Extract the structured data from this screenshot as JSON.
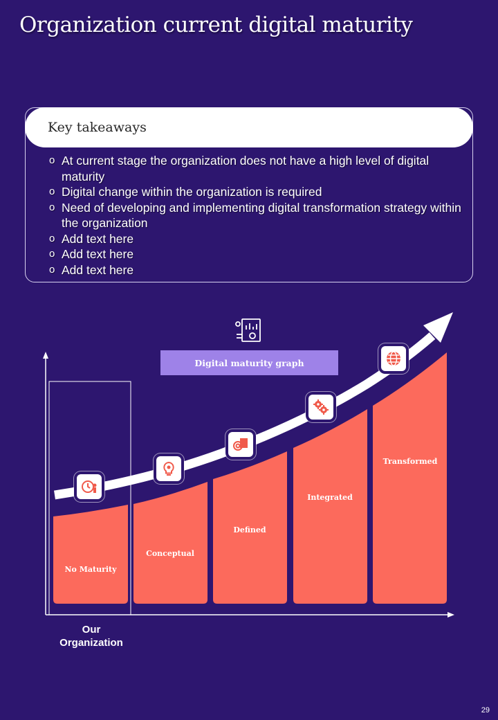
{
  "page": {
    "title": "Organization current digital maturity",
    "page_number": "29"
  },
  "takeaways": {
    "title": "Key takeaways",
    "bullet": "o",
    "items": [
      "At current stage the organization does not have a high level of digital maturity",
      "Digital change within the organization is required",
      "Need of developing and implementing digital transformation strategy within the organization",
      "Add text here",
      "Add text here",
      "Add text here"
    ]
  },
  "graph": {
    "label": "Digital maturity graph",
    "highlight_caption": "Our Organization",
    "stages": [
      {
        "label": "No Maturity",
        "icon": "clock-person-icon"
      },
      {
        "label": "Conceptual",
        "icon": "lightbulb-gear-icon"
      },
      {
        "label": "Defined",
        "icon": "target-document-icon"
      },
      {
        "label": "Integrated",
        "icon": "gears-icon"
      },
      {
        "label": "Transformed",
        "icon": "globe-icon"
      }
    ],
    "header_icon": "report-chart-icon",
    "colors": {
      "background": "#2d166f",
      "bar": "#fc6a5c",
      "label_box": "#9e82e8",
      "icon": "#f05a4a"
    }
  }
}
